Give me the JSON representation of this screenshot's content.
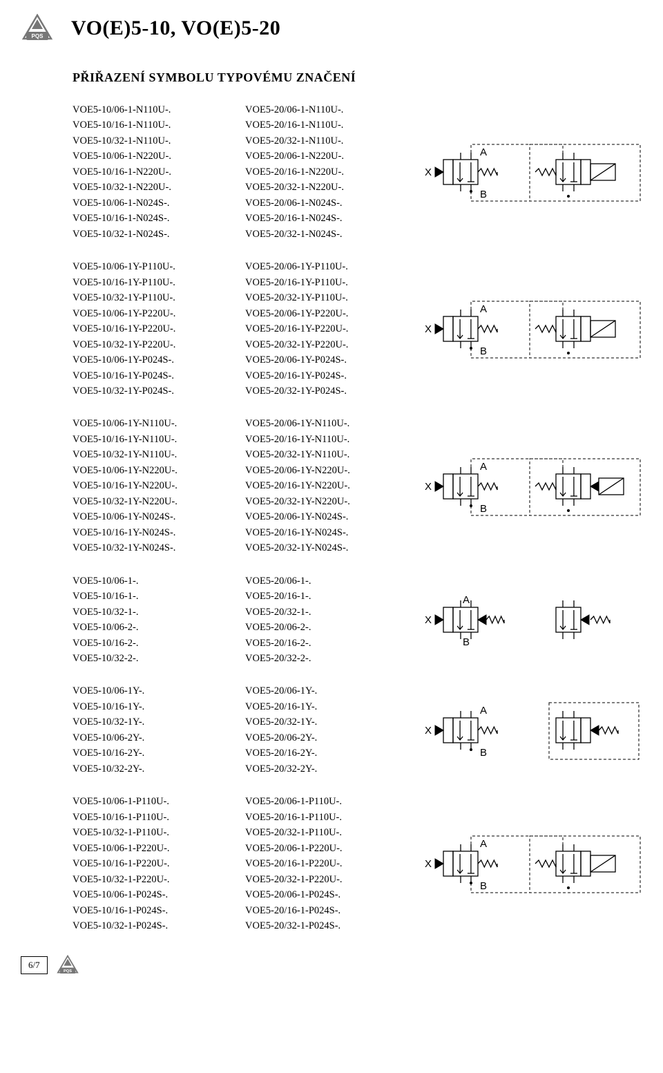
{
  "header": {
    "title": "VO(E)5-10, VO(E)5-20",
    "subtitle": "PŘIŘAZENÍ SYMBOLU TYPOVÉMU ZNAČENÍ",
    "logo_text": "PQS"
  },
  "sections": [
    {
      "col1": [
        "VOE5-10/06-1-N110U-.",
        "VOE5-10/16-1-N110U-.",
        "VOE5-10/32-1-N110U-.",
        "VOE5-10/06-1-N220U-.",
        "VOE5-10/16-1-N220U-.",
        "VOE5-10/32-1-N220U-.",
        "VOE5-10/06-1-N024S-.",
        "VOE5-10/16-1-N024S-.",
        "VOE5-10/32-1-N024S-."
      ],
      "col2": [
        "VOE5-20/06-1-N110U-.",
        "VOE5-20/16-1-N110U-.",
        "VOE5-20/32-1-N110U-.",
        "VOE5-20/06-1-N220U-.",
        "VOE5-20/16-1-N220U-.",
        "VOE5-20/32-1-N220U-.",
        "VOE5-20/06-1-N024S-.",
        "VOE5-20/16-1-N024S-.",
        "VOE5-20/32-1-N024S-."
      ],
      "schematic_labels": {
        "x": "X",
        "a": "A",
        "b": "B"
      },
      "schematic_type": 1
    },
    {
      "col1": [
        "VOE5-10/06-1Y-P110U-.",
        "VOE5-10/16-1Y-P110U-.",
        "VOE5-10/32-1Y-P110U-.",
        "VOE5-10/06-1Y-P220U-.",
        "VOE5-10/16-1Y-P220U-.",
        "VOE5-10/32-1Y-P220U-.",
        "VOE5-10/06-1Y-P024S-.",
        "VOE5-10/16-1Y-P024S-.",
        "VOE5-10/32-1Y-P024S-."
      ],
      "col2": [
        "VOE5-20/06-1Y-P110U-.",
        "VOE5-20/16-1Y-P110U-.",
        "VOE5-20/32-1Y-P110U-.",
        "VOE5-20/06-1Y-P220U-.",
        "VOE5-20/16-1Y-P220U-.",
        "VOE5-20/32-1Y-P220U-.",
        "VOE5-20/06-1Y-P024S-.",
        "VOE5-20/16-1Y-P024S-.",
        "VOE5-20/32-1Y-P024S-."
      ],
      "schematic_labels": {
        "x": "X",
        "a": "A",
        "b": "B"
      },
      "schematic_type": 2
    },
    {
      "col1": [
        "VOE5-10/06-1Y-N110U-.",
        "VOE5-10/16-1Y-N110U-.",
        "VOE5-10/32-1Y-N110U-.",
        "VOE5-10/06-1Y-N220U-.",
        "VOE5-10/16-1Y-N220U-.",
        "VOE5-10/32-1Y-N220U-.",
        "VOE5-10/06-1Y-N024S-.",
        "VOE5-10/16-1Y-N024S-.",
        "VOE5-10/32-1Y-N024S-."
      ],
      "col2": [
        "VOE5-20/06-1Y-N110U-.",
        "VOE5-20/16-1Y-N110U-.",
        "VOE5-20/32-1Y-N110U-.",
        "VOE5-20/06-1Y-N220U-.",
        "VOE5-20/16-1Y-N220U-.",
        "VOE5-20/32-1Y-N220U-.",
        "VOE5-20/06-1Y-N024S-.",
        "VOE5-20/16-1Y-N024S-.",
        "VOE5-20/32-1Y-N024S-."
      ],
      "schematic_labels": {
        "x": "X",
        "a": "A",
        "b": "B"
      },
      "schematic_type": 3
    },
    {
      "col1": [
        "VOE5-10/06-1-.",
        "VOE5-10/16-1-.",
        "VOE5-10/32-1-.",
        "VOE5-10/06-2-.",
        "VOE5-10/16-2-.",
        "VOE5-10/32-2-."
      ],
      "col2": [
        "VOE5-20/06-1-.",
        "VOE5-20/16-1-.",
        "VOE5-20/32-1-.",
        "VOE5-20/06-2-.",
        "VOE5-20/16-2-.",
        "VOE5-20/32-2-."
      ],
      "schematic_labels": {
        "x": "X",
        "a": "A",
        "b": "B"
      },
      "schematic_type": 4
    },
    {
      "col1": [
        "VOE5-10/06-1Y-.",
        "VOE5-10/16-1Y-.",
        "VOE5-10/32-1Y-.",
        "VOE5-10/06-2Y-.",
        "VOE5-10/16-2Y-.",
        "VOE5-10/32-2Y-."
      ],
      "col2": [
        "VOE5-20/06-1Y-.",
        "VOE5-20/16-1Y-.",
        "VOE5-20/32-1Y-.",
        "VOE5-20/06-2Y-.",
        "VOE5-20/16-2Y-.",
        "VOE5-20/32-2Y-."
      ],
      "schematic_labels": {
        "x": "X",
        "a": "A",
        "b": "B"
      },
      "schematic_type": 5
    },
    {
      "col1": [
        "VOE5-10/06-1-P110U-.",
        "VOE5-10/16-1-P110U-.",
        "VOE5-10/32-1-P110U-.",
        "VOE5-10/06-1-P220U-.",
        "VOE5-10/16-1-P220U-.",
        "VOE5-10/32-1-P220U-.",
        "VOE5-10/06-1-P024S-.",
        "VOE5-10/16-1-P024S-.",
        "VOE5-10/32-1-P024S-."
      ],
      "col2": [
        "VOE5-20/06-1-P110U-.",
        "VOE5-20/16-1-P110U-.",
        "VOE5-20/32-1-P110U-.",
        "VOE5-20/06-1-P220U-.",
        "VOE5-20/16-1-P220U-.",
        "VOE5-20/32-1-P220U-.",
        "VOE5-20/06-1-P024S-.",
        "VOE5-20/16-1-P024S-.",
        "VOE5-20/32-1-P024S-."
      ],
      "schematic_labels": {
        "x": "X",
        "a": "A",
        "b": "B"
      },
      "schematic_type": 6
    }
  ],
  "footer": {
    "page": "6/7"
  },
  "style": {
    "stroke": "#000000",
    "stroke_width": 1.3,
    "dash": "3,2"
  }
}
